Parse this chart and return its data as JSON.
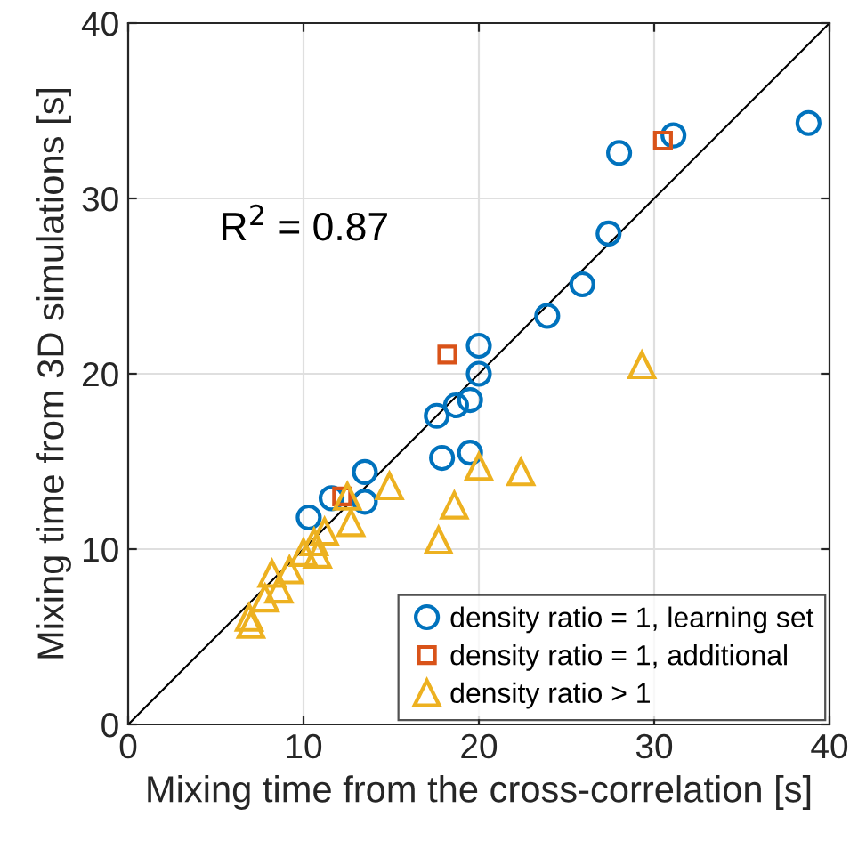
{
  "chart_data": {
    "type": "scatter",
    "xlabel": "Mixing time from the cross-correlation [s]",
    "ylabel": "Mixing time from 3D simulations [s]",
    "annotations": [
      "R$^{2}$ = 0.87"
    ],
    "xlim": [
      0,
      40
    ],
    "ylim": [
      0,
      40
    ],
    "xticks": [
      0,
      10,
      20,
      30,
      40
    ],
    "yticks": [
      0,
      10,
      20,
      30,
      40
    ],
    "grid": true,
    "legend": "bottom right",
    "series": [
      {
        "name": "density ratio = 1, learning set",
        "color": "#0072bd",
        "marker": "circle",
        "x": [
          31.1,
          28.0,
          38.8,
          27.4,
          25.9,
          23.9,
          20.0,
          20.0,
          19.5,
          18.7,
          17.6,
          17.9,
          19.5,
          13.5,
          13.5,
          11.6,
          10.3
        ],
        "values": [
          33.6,
          32.6,
          34.3,
          28.0,
          25.1,
          23.3,
          21.6,
          20.0,
          18.5,
          18.2,
          17.6,
          15.2,
          15.5,
          14.4,
          12.7,
          12.9,
          11.8
        ]
      },
      {
        "name": "density ratio = 1, additional",
        "color": "#d95319",
        "marker": "square",
        "x": [
          30.5,
          18.2,
          12.2
        ],
        "values": [
          33.3,
          21.1,
          13.0
        ]
      },
      {
        "name": "density ratio > 1",
        "color": "#edb120",
        "marker": "triangle",
        "x": [
          29.3,
          22.4,
          20.0,
          18.6,
          17.7,
          14.9,
          12.7,
          12.5,
          11.2,
          10.6,
          10.0,
          10.8,
          9.2,
          8.2,
          8.6,
          7.8,
          6.9,
          7.0
        ],
        "values": [
          20.5,
          14.4,
          14.7,
          12.5,
          10.5,
          13.6,
          11.5,
          13.0,
          11.0,
          10.4,
          9.8,
          9.7,
          8.8,
          8.6,
          7.7,
          7.2,
          6.1,
          5.7
        ]
      },
      {
        "type": "line",
        "color": "#000000",
        "marker": "none",
        "x": [
          0,
          40
        ],
        "values": [
          0,
          40
        ]
      }
    ]
  }
}
